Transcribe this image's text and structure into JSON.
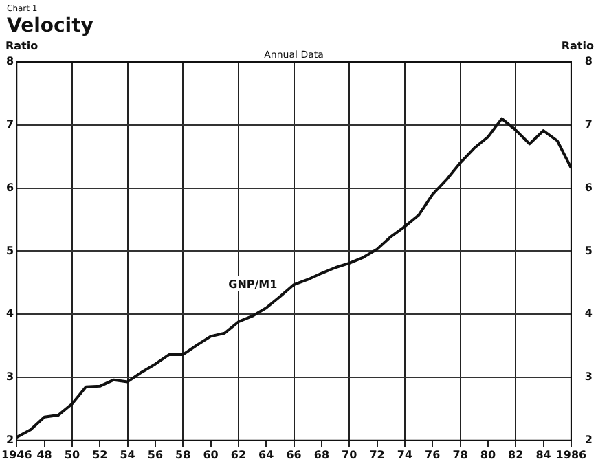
{
  "chart_data": {
    "type": "line",
    "title": "Velocity",
    "subtitle": "Chart 1",
    "ylabel": "Ratio",
    "y2label": "Ratio",
    "annotations": [
      "Annual Data"
    ],
    "x": [
      1946,
      1947,
      1948,
      1949,
      1950,
      1951,
      1952,
      1953,
      1954,
      1955,
      1956,
      1957,
      1958,
      1959,
      1960,
      1961,
      1962,
      1963,
      1964,
      1965,
      1966,
      1967,
      1968,
      1969,
      1970,
      1971,
      1972,
      1973,
      1974,
      1975,
      1976,
      1977,
      1978,
      1979,
      1980,
      1981,
      1982,
      1983,
      1984,
      1985,
      1986
    ],
    "series": [
      {
        "name": "GNP/M1",
        "color": "#111111",
        "values": [
          2.05,
          2.17,
          2.37,
          2.4,
          2.58,
          2.85,
          2.86,
          2.96,
          2.93,
          3.08,
          3.21,
          3.36,
          3.36,
          3.51,
          3.65,
          3.7,
          3.88,
          3.97,
          4.1,
          4.28,
          4.47,
          4.55,
          4.65,
          4.74,
          4.81,
          4.9,
          5.03,
          5.23,
          5.39,
          5.57,
          5.9,
          6.13,
          6.4,
          6.63,
          6.81,
          7.1,
          6.92,
          6.7,
          6.91,
          6.75,
          6.32
        ]
      }
    ],
    "xlim": [
      1946,
      1986
    ],
    "xticks": [
      {
        "value": 1946,
        "label": "1946"
      },
      {
        "value": 1948,
        "label": "48"
      },
      {
        "value": 1950,
        "label": "50"
      },
      {
        "value": 1952,
        "label": "52"
      },
      {
        "value": 1954,
        "label": "54"
      },
      {
        "value": 1956,
        "label": "56"
      },
      {
        "value": 1958,
        "label": "58"
      },
      {
        "value": 1960,
        "label": "60"
      },
      {
        "value": 1962,
        "label": "62"
      },
      {
        "value": 1964,
        "label": "64"
      },
      {
        "value": 1966,
        "label": "66"
      },
      {
        "value": 1968,
        "label": "68"
      },
      {
        "value": 1970,
        "label": "70"
      },
      {
        "value": 1972,
        "label": "72"
      },
      {
        "value": 1974,
        "label": "74"
      },
      {
        "value": 1976,
        "label": "76"
      },
      {
        "value": 1978,
        "label": "78"
      },
      {
        "value": 1980,
        "label": "80"
      },
      {
        "value": 1982,
        "label": "82"
      },
      {
        "value": 1984,
        "label": "84"
      },
      {
        "value": 1986,
        "label": "1986"
      }
    ],
    "ylim": [
      2,
      8
    ],
    "yticks": [
      2,
      3,
      4,
      5,
      6,
      7,
      8
    ],
    "y2lim": [
      2,
      8
    ],
    "y2ticks": [
      2,
      3,
      4,
      5,
      6,
      7,
      8
    ],
    "grid": true,
    "legend": false,
    "marker": "none",
    "line_style": "solid"
  }
}
